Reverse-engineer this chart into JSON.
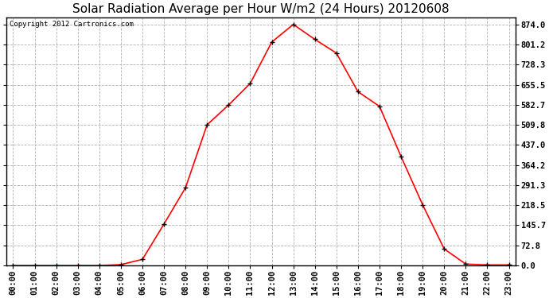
{
  "title": "Solar Radiation Average per Hour W/m2 (24 Hours) 20120608",
  "copyright": "Copyright 2012 Cartronics.com",
  "hours": [
    "00:00",
    "01:00",
    "02:00",
    "03:00",
    "04:00",
    "05:00",
    "06:00",
    "07:00",
    "08:00",
    "09:00",
    "10:00",
    "11:00",
    "12:00",
    "13:00",
    "14:00",
    "15:00",
    "16:00",
    "17:00",
    "18:00",
    "19:00",
    "20:00",
    "21:00",
    "22:00",
    "23:00"
  ],
  "values": [
    0,
    0,
    0,
    0,
    0,
    3,
    22,
    150,
    282,
    510,
    582,
    660,
    810,
    874,
    820,
    770,
    630,
    577,
    395,
    220,
    60,
    5,
    2,
    2
  ],
  "line_color": "#ff0000",
  "marker": "+",
  "marker_color": "#000000",
  "plot_bg_color": "#ffffff",
  "grid_color": "#b0b0b0",
  "grid_style": "--",
  "title_fontsize": 11,
  "copyright_fontsize": 6.5,
  "tick_fontsize": 7.5,
  "ytick_labels": [
    "0.0",
    "72.8",
    "145.7",
    "218.5",
    "291.3",
    "364.2",
    "437.0",
    "509.8",
    "582.7",
    "655.5",
    "728.3",
    "801.2",
    "874.0"
  ],
  "ytick_values": [
    0.0,
    72.8,
    145.7,
    218.5,
    291.3,
    364.2,
    437.0,
    509.8,
    582.7,
    655.5,
    728.3,
    801.2,
    874.0
  ],
  "ylim": [
    0,
    900
  ],
  "outer_bg": "#ffffff",
  "border_color": "#000000",
  "line_width": 1.2,
  "marker_size": 4
}
